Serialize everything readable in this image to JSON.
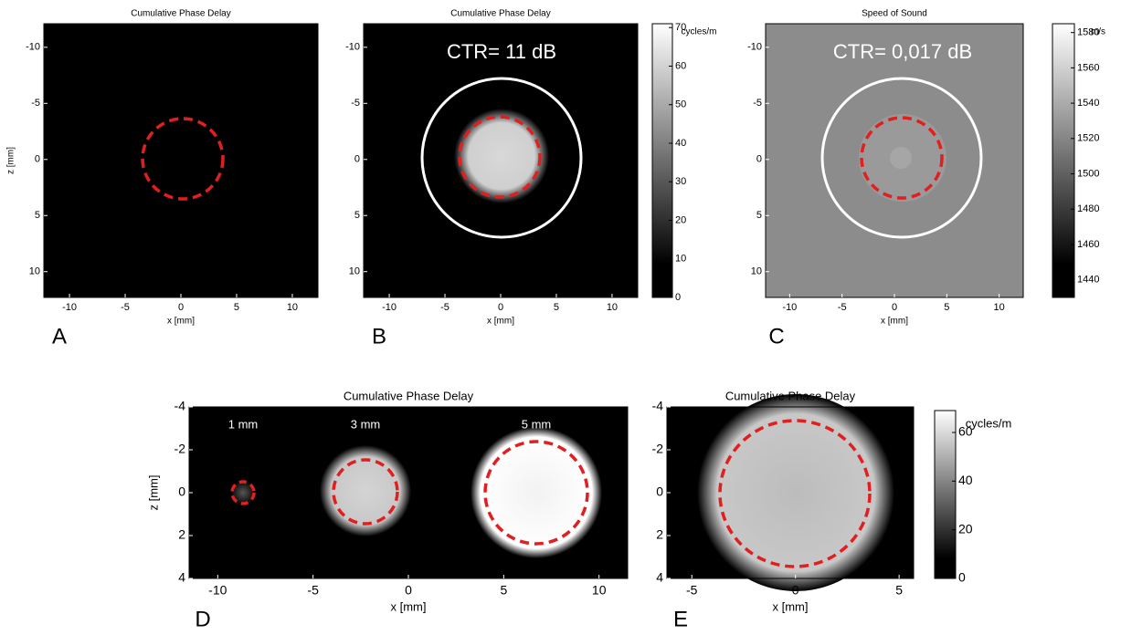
{
  "chart_data": [
    {
      "type": "image",
      "title": "Cumulative Phase Delay",
      "xlabel": "x [mm]",
      "ylabel": "z [mm]",
      "panel": "A",
      "xlim": [
        -12.3,
        12.3
      ],
      "ylim": [
        -12.1,
        12.3
      ],
      "xticks": [
        -10,
        -5,
        0,
        5,
        10
      ],
      "yticks": [
        -10,
        -5,
        0,
        5,
        10
      ]
    },
    {
      "type": "image",
      "title": "Cumulative Phase Delay",
      "xlabel": "x [mm]",
      "panel": "B",
      "xlim": [
        -12.3,
        12.3
      ],
      "ylim": [
        -12.1,
        12.3
      ],
      "xticks": [
        -10,
        -5,
        0,
        5,
        10
      ],
      "yticks": [
        -10,
        -5,
        0,
        5,
        10
      ],
      "annotations": [
        "CTR= 11 dB"
      ],
      "colorbar": {
        "clim": [
          0,
          71
        ],
        "ticks": [
          0,
          10,
          20,
          30,
          40,
          50,
          60,
          70
        ],
        "unit": "cycles/m"
      }
    },
    {
      "type": "image",
      "title": "Speed of Sound",
      "xlabel": "x [mm]",
      "panel": "C",
      "xlim": [
        -12.3,
        12.3
      ],
      "ylim": [
        -12.1,
        12.3
      ],
      "xticks": [
        -10,
        -5,
        0,
        5,
        10
      ],
      "yticks": [
        -10,
        -5,
        0,
        5,
        10
      ],
      "annotations": [
        "CTR= 0,017 dB"
      ],
      "colorbar": {
        "clim": [
          1430,
          1585
        ],
        "ticks": [
          1440,
          1460,
          1480,
          1500,
          1520,
          1540,
          1560,
          1580
        ],
        "unit": "m/s"
      }
    },
    {
      "type": "image",
      "title": "Cumulative Phase Delay",
      "xlabel": "x [mm]",
      "ylabel": "z [mm]",
      "panel": "D",
      "xlim": [
        -11.5,
        11.5
      ],
      "ylim": [
        -4,
        4
      ],
      "xticks": [
        -10,
        -5,
        0,
        5,
        10
      ],
      "yticks": [
        -4,
        -2,
        0,
        2,
        4
      ],
      "annotations": [
        "1 mm",
        "3 mm",
        "5 mm"
      ]
    },
    {
      "type": "image",
      "title": "Cumulative Phase Delay",
      "xlabel": "x [mm]",
      "panel": "E",
      "xlim": [
        -6.2,
        5.7
      ],
      "ylim": [
        -4,
        4
      ],
      "xticks": [
        -5,
        0,
        5
      ],
      "yticks": [
        -4,
        -2,
        0,
        2,
        4
      ],
      "colorbar": {
        "clim": [
          0,
          69
        ],
        "ticks": [
          0,
          20,
          40,
          60
        ],
        "unit": "cycles/m"
      }
    }
  ]
}
